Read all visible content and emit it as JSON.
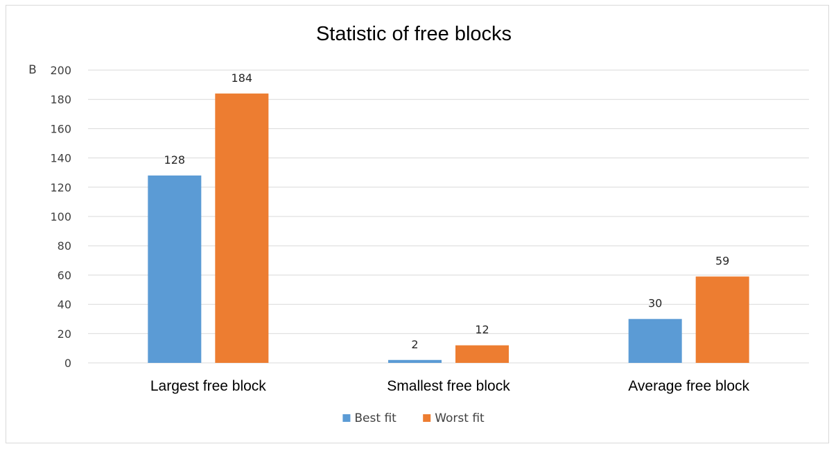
{
  "chart_data": {
    "type": "bar",
    "title": "Statistic of free blocks",
    "ylabel": "B",
    "xlabel": "",
    "ylim": [
      0,
      200
    ],
    "yticks": [
      0,
      20,
      40,
      60,
      80,
      100,
      120,
      140,
      160,
      180,
      200
    ],
    "categories": [
      "Largest free block",
      "Smallest free block",
      "Average free block"
    ],
    "series": [
      {
        "name": "Best fit",
        "values": [
          128,
          2,
          30
        ],
        "color": "#5b9bd5"
      },
      {
        "name": "Worst fit",
        "values": [
          184,
          12,
          59
        ],
        "color": "#ed7d31"
      }
    ],
    "data_labels": true,
    "grid": "horizontal",
    "legend_position": "bottom"
  }
}
